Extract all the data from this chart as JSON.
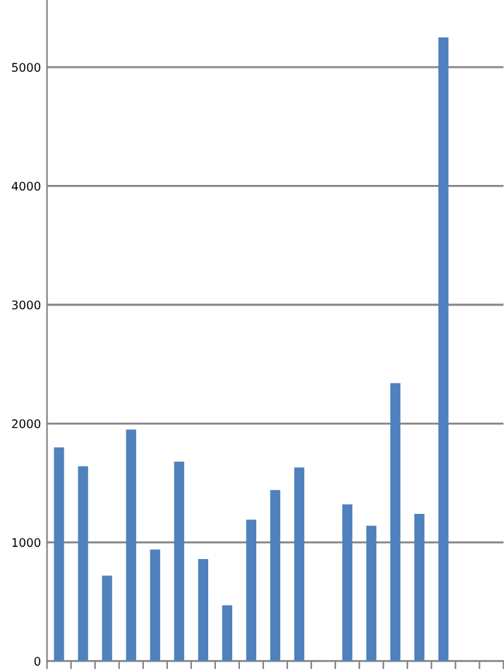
{
  "chart_data": {
    "type": "bar",
    "categories": [
      null,
      null,
      null,
      null,
      null,
      null,
      null,
      null,
      null,
      null,
      null,
      null,
      null,
      null,
      null,
      null,
      null,
      null,
      null
    ],
    "values": [
      1800,
      1640,
      720,
      1950,
      940,
      1680,
      860,
      470,
      1190,
      1440,
      1630,
      null,
      1320,
      1140,
      2340,
      1240,
      5250,
      null,
      null
    ],
    "color": "#4f81bd",
    "ylim": [
      0,
      5560
    ],
    "yticks": [
      0,
      1000,
      2000,
      3000,
      4000,
      5000
    ],
    "grid": "y"
  }
}
